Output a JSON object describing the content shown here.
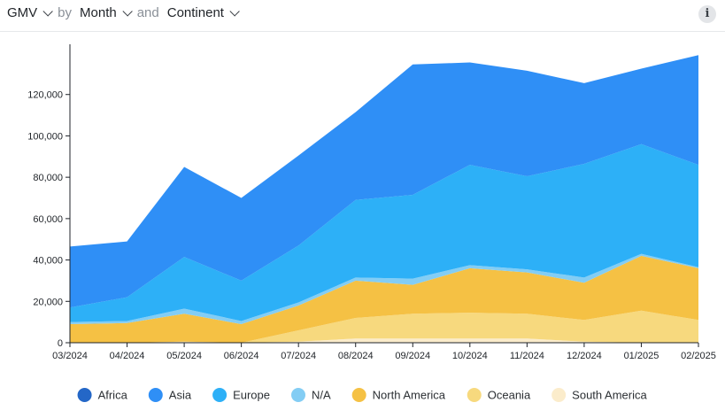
{
  "header": {
    "metric": "GMV",
    "by": "by",
    "dim1": "Month",
    "and": "and",
    "dim2": "Continent",
    "info_glyph": "i"
  },
  "chart_data": {
    "type": "area",
    "stacked": true,
    "categories": [
      "03/2024",
      "04/2024",
      "05/2024",
      "06/2024",
      "07/2024",
      "08/2024",
      "09/2024",
      "10/2024",
      "11/2024",
      "12/2024",
      "01/2025",
      "02/2025"
    ],
    "ylim": [
      0,
      140000
    ],
    "yticks": [
      0,
      20000,
      40000,
      60000,
      80000,
      100000,
      120000
    ],
    "ytick_labels": [
      "0",
      "20,000",
      "40,000",
      "60,000",
      "80,000",
      "100,000",
      "120,000"
    ],
    "legend_position": "bottom",
    "series": [
      {
        "name": "South America",
        "color": "#fbeccb",
        "values": [
          0,
          0,
          500,
          0,
          500,
          2000,
          2000,
          2000,
          2000,
          500,
          0,
          0
        ]
      },
      {
        "name": "Oceania",
        "color": "#f7d97e",
        "values": [
          0,
          0,
          0,
          0,
          5500,
          10000,
          12000,
          12500,
          12000,
          10500,
          15500,
          11000
        ]
      },
      {
        "name": "North America",
        "color": "#f5c144",
        "values": [
          9000,
          9500,
          13500,
          9000,
          12000,
          18000,
          14000,
          21500,
          20000,
          18000,
          26500,
          25000
        ]
      },
      {
        "name": "N/A",
        "color": "#83cdf4",
        "values": [
          1000,
          1000,
          2500,
          1500,
          1500,
          1500,
          3000,
          1500,
          1500,
          2500,
          1000,
          500
        ]
      },
      {
        "name": "Europe",
        "color": "#2db0f7",
        "values": [
          7000,
          11500,
          25000,
          19500,
          27500,
          37500,
          40500,
          48500,
          45000,
          55000,
          53000,
          49500
        ]
      },
      {
        "name": "Asia",
        "color": "#2f8ff6",
        "values": [
          29500,
          27000,
          43500,
          40000,
          43500,
          42500,
          63000,
          49500,
          51000,
          39000,
          36500,
          53000
        ]
      },
      {
        "name": "Africa",
        "color": "#2467c7",
        "values": [
          0,
          0,
          0,
          0,
          0,
          0,
          0,
          0,
          0,
          0,
          0,
          0
        ]
      }
    ],
    "legend_order": [
      "Africa",
      "Asia",
      "Europe",
      "N/A",
      "North America",
      "Oceania",
      "South America"
    ]
  }
}
